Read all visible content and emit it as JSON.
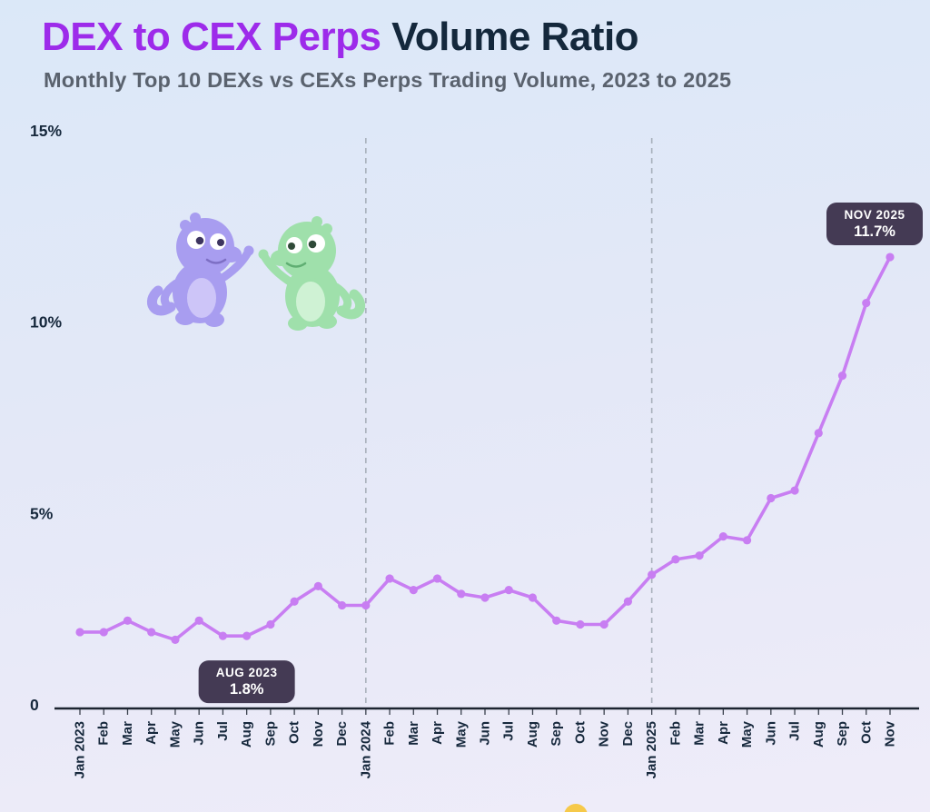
{
  "header": {
    "title_accent": "DEX to CEX Perps",
    "title_rest": "Volume Ratio",
    "subtitle": "Monthly Top 10 DEXs vs CEXs Perps Trading Volume, 2023 to 2025"
  },
  "colors": {
    "accent_purple": "#9d2bea",
    "title_dark": "#14283c",
    "subtitle_gray": "#5a626e",
    "line_purple": "#c87ef2",
    "annotation_bg": "#443a54",
    "annotation_text": "#ffffff",
    "axis_dark": "#1c2430",
    "tick_label_dark": "#16283c",
    "gridline_gray": "#9aa3ad",
    "mascot_purple": "#a89df0",
    "mascot_purple_belly": "#cdc5f8",
    "mascot_green": "#9fe0ab",
    "mascot_green_belly": "#cff2d4",
    "yellow_dot": "#f6c94a"
  },
  "chart_data": {
    "type": "line",
    "title": "DEX to CEX Perps Volume Ratio",
    "subtitle": "Monthly Top 10 DEXs vs CEXs Perps Trading Volume, 2023 to 2025",
    "unit": "%",
    "x": [
      "Jan 2023",
      "Feb",
      "Mar",
      "Apr",
      "May",
      "Jun",
      "Jul",
      "Aug",
      "Sep",
      "Oct",
      "Nov",
      "Dec",
      "Jan 2024",
      "Feb",
      "Mar",
      "Apr",
      "May",
      "Jun",
      "Jul",
      "Aug",
      "Sep",
      "Oct",
      "Nov",
      "Dec",
      "Jan 2025",
      "Feb",
      "Mar",
      "Apr",
      "May",
      "Jun",
      "Jul",
      "Aug",
      "Sep",
      "Oct",
      "Nov"
    ],
    "values": [
      1.9,
      1.9,
      2.2,
      1.9,
      1.7,
      2.2,
      1.8,
      1.8,
      2.1,
      2.7,
      3.1,
      2.6,
      2.6,
      3.3,
      3.0,
      3.3,
      2.9,
      2.8,
      3.0,
      2.8,
      2.2,
      2.1,
      2.1,
      2.7,
      3.4,
      3.8,
      3.9,
      4.4,
      4.3,
      5.4,
      5.6,
      7.1,
      8.6,
      10.5,
      11.7
    ],
    "ylim": [
      0,
      15
    ],
    "yticks": [
      {
        "value": 0,
        "label": "0"
      },
      {
        "value": 5,
        "label": "5%"
      },
      {
        "value": 10,
        "label": "10%"
      },
      {
        "value": 15,
        "label": "15%"
      }
    ],
    "vline_indices": [
      12,
      24
    ],
    "grid": "vertical-dashed-at-year-start",
    "legend": "none",
    "annotations": [
      {
        "label": "AUG 2023",
        "value": "1.8%",
        "index": 7,
        "placement": "below"
      },
      {
        "label": "NOV 2025",
        "value": "11.7%",
        "index": 34,
        "placement": "above"
      }
    ]
  }
}
